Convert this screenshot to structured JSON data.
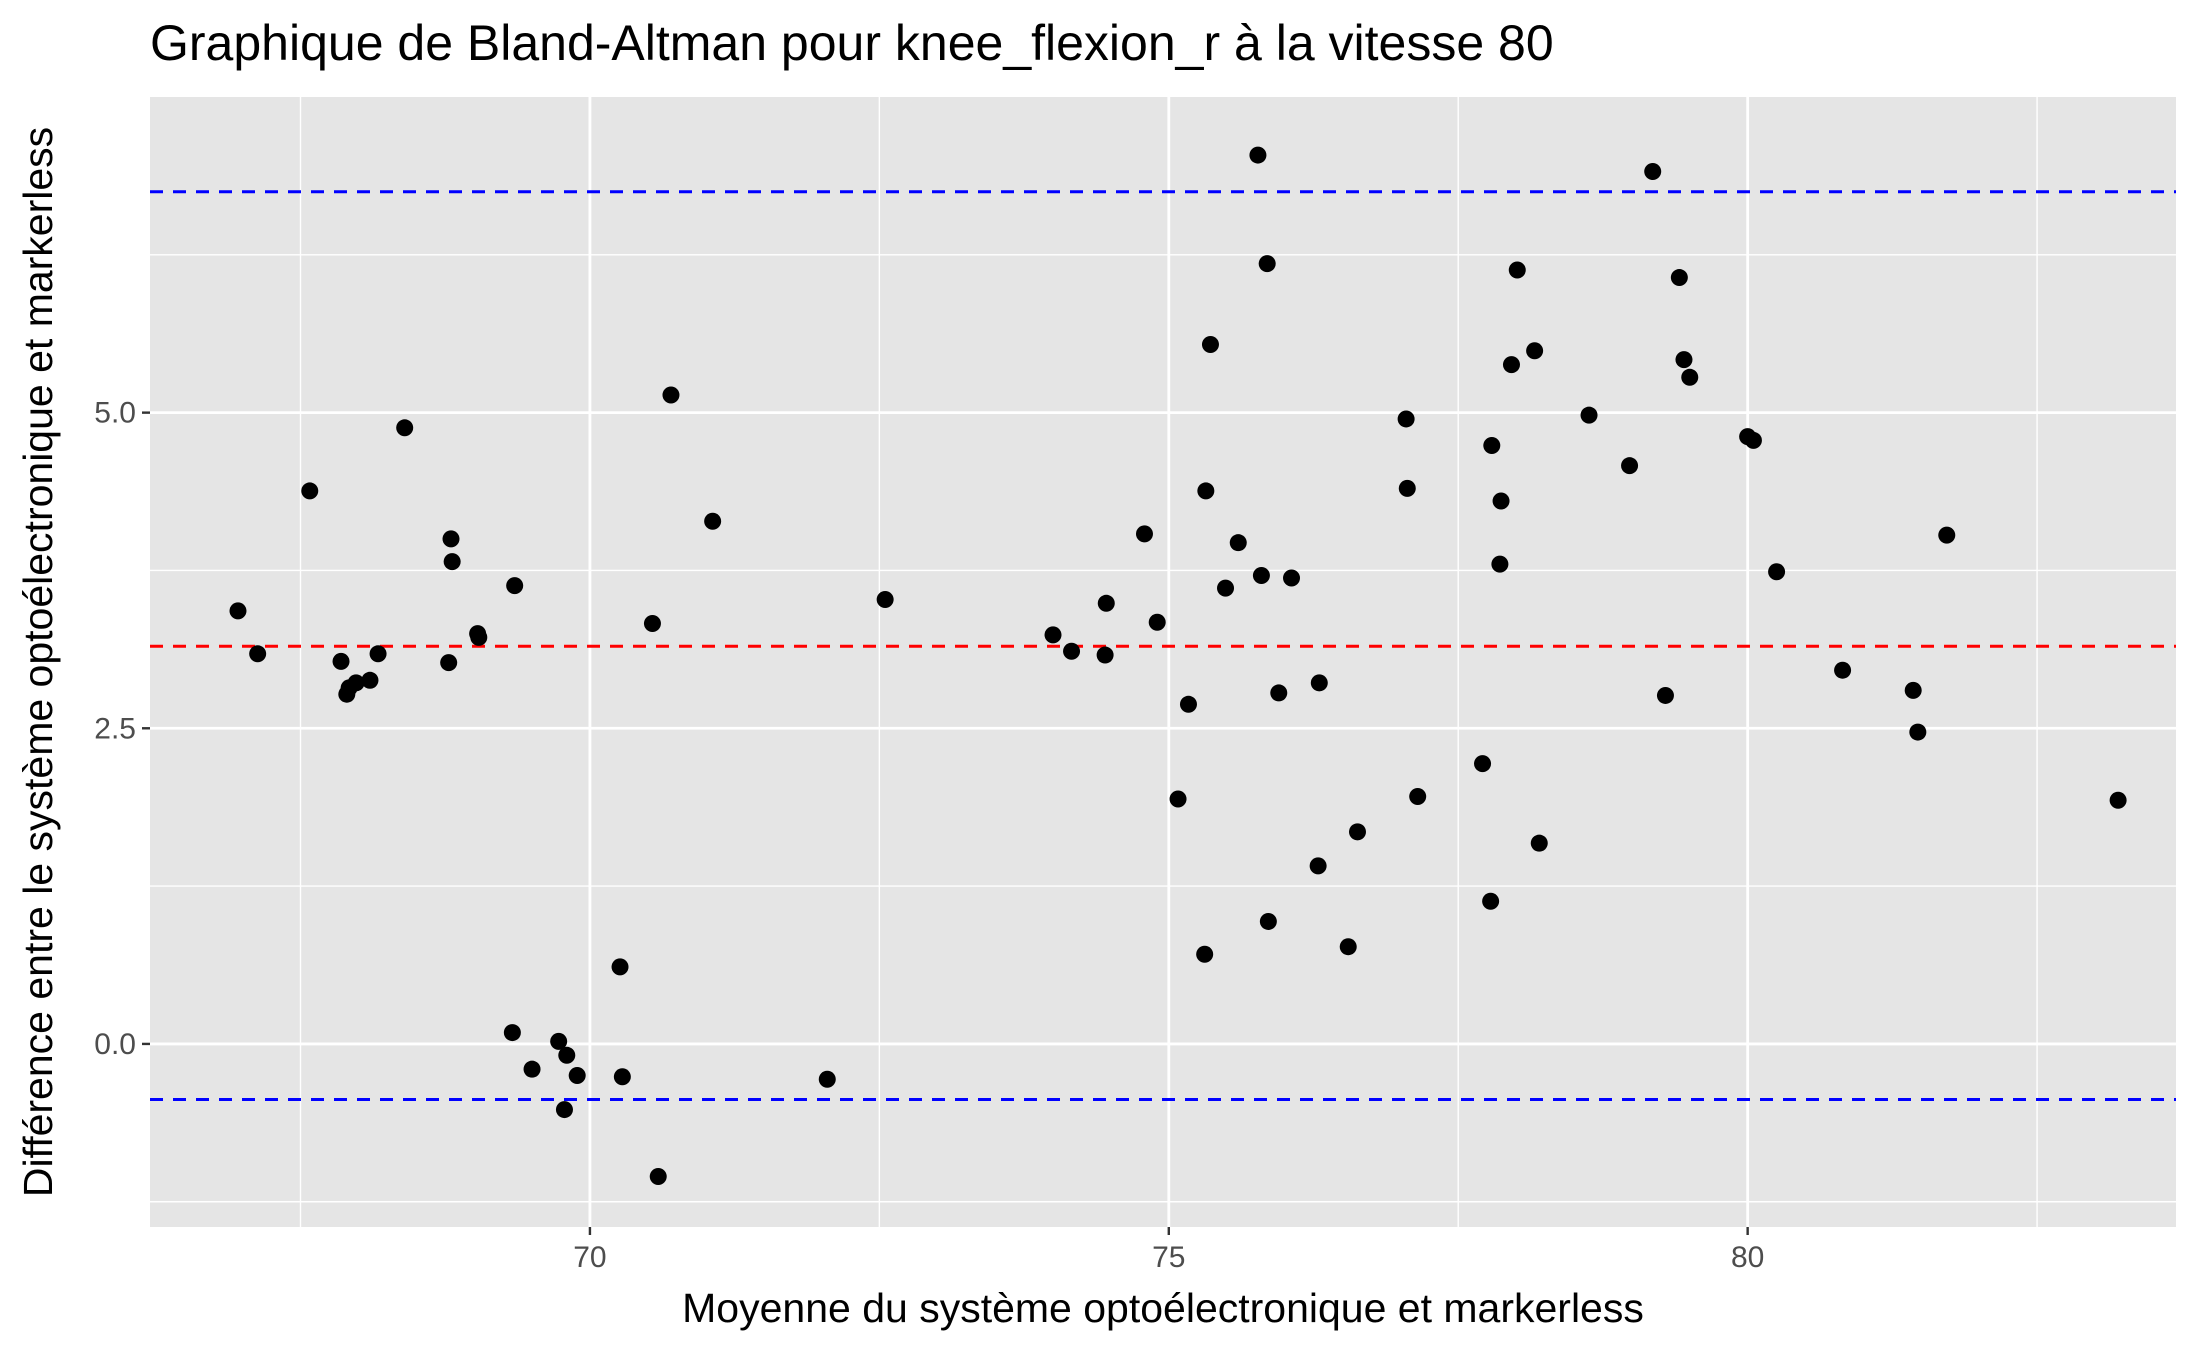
{
  "chart_data": {
    "type": "scatter",
    "title": "Graphique de Bland-Altman pour knee_flexion_r à la vitesse 80",
    "xlabel": "Moyenne du système optoélectronique et markerless",
    "ylabel": "Différence entre le système optoélectronique et markerless",
    "xlim": [
      66.2,
      83.7
    ],
    "ylim": [
      -1.45,
      7.5
    ],
    "x_ticks": [
      70,
      75,
      80
    ],
    "x_tick_labels": [
      "70",
      "75",
      "80"
    ],
    "y_ticks": [
      0,
      2.5,
      5
    ],
    "y_tick_labels": [
      "0.0",
      "2.5",
      "5.0"
    ],
    "grid": true,
    "colors": {
      "panel": "#e5e5e5",
      "grid": "#ffffff",
      "points": "#000000",
      "mean_line": "#ff0000",
      "limit_lines": "#0000ff"
    },
    "hlines": [
      {
        "role": "mean",
        "y": 3.15,
        "color": "#ff0000",
        "style": "dashed"
      },
      {
        "role": "upper-limit",
        "y": 6.75,
        "color": "#0000ff",
        "style": "dashed"
      },
      {
        "role": "lower-limit",
        "y": -0.44,
        "color": "#0000ff",
        "style": "dashed"
      }
    ],
    "points": [
      [
        66.96,
        3.43
      ],
      [
        67.13,
        3.09
      ],
      [
        67.58,
        4.38
      ],
      [
        67.85,
        3.03
      ],
      [
        67.9,
        2.77
      ],
      [
        67.92,
        2.82
      ],
      [
        67.98,
        2.86
      ],
      [
        68.1,
        2.88
      ],
      [
        68.17,
        3.09
      ],
      [
        68.4,
        4.88
      ],
      [
        68.78,
        3.02
      ],
      [
        68.8,
        4.0
      ],
      [
        68.81,
        3.82
      ],
      [
        69.03,
        3.25
      ],
      [
        69.04,
        3.22
      ],
      [
        69.35,
        3.63
      ],
      [
        69.33,
        0.09
      ],
      [
        69.5,
        -0.2
      ],
      [
        69.73,
        0.02
      ],
      [
        69.78,
        -0.52
      ],
      [
        69.8,
        -0.09
      ],
      [
        69.89,
        -0.25
      ],
      [
        70.26,
        0.61
      ],
      [
        70.28,
        -0.26
      ],
      [
        70.54,
        3.33
      ],
      [
        70.59,
        -1.05
      ],
      [
        70.7,
        5.14
      ],
      [
        71.06,
        4.14
      ],
      [
        72.05,
        -0.28
      ],
      [
        72.55,
        3.52
      ],
      [
        74.0,
        3.24
      ],
      [
        74.16,
        3.11
      ],
      [
        74.45,
        3.08
      ],
      [
        74.46,
        3.49
      ],
      [
        74.79,
        4.04
      ],
      [
        74.9,
        3.34
      ],
      [
        75.08,
        1.94
      ],
      [
        75.17,
        2.69
      ],
      [
        75.31,
        0.71
      ],
      [
        75.32,
        4.38
      ],
      [
        75.36,
        5.54
      ],
      [
        75.49,
        3.61
      ],
      [
        75.6,
        3.97
      ],
      [
        75.77,
        7.04
      ],
      [
        75.8,
        3.71
      ],
      [
        75.85,
        6.18
      ],
      [
        75.86,
        0.97
      ],
      [
        75.95,
        2.78
      ],
      [
        76.06,
        3.69
      ],
      [
        76.29,
        1.41
      ],
      [
        76.3,
        2.86
      ],
      [
        76.55,
        0.77
      ],
      [
        76.63,
        1.68
      ],
      [
        77.05,
        4.95
      ],
      [
        77.06,
        4.4
      ],
      [
        77.15,
        1.96
      ],
      [
        77.71,
        2.22
      ],
      [
        77.78,
        1.13
      ],
      [
        77.79,
        4.74
      ],
      [
        77.86,
        3.8
      ],
      [
        77.87,
        4.3
      ],
      [
        77.96,
        5.38
      ],
      [
        78.01,
        6.13
      ],
      [
        78.16,
        5.49
      ],
      [
        78.2,
        1.59
      ],
      [
        78.63,
        4.98
      ],
      [
        78.98,
        4.58
      ],
      [
        79.18,
        6.91
      ],
      [
        79.29,
        2.76
      ],
      [
        79.41,
        6.07
      ],
      [
        79.45,
        5.42
      ],
      [
        79.5,
        5.28
      ],
      [
        80.0,
        4.81
      ],
      [
        80.05,
        4.78
      ],
      [
        80.25,
        3.74
      ],
      [
        80.82,
        2.96
      ],
      [
        81.43,
        2.8
      ],
      [
        81.47,
        2.47
      ],
      [
        81.72,
        4.03
      ],
      [
        83.2,
        1.93
      ]
    ]
  }
}
